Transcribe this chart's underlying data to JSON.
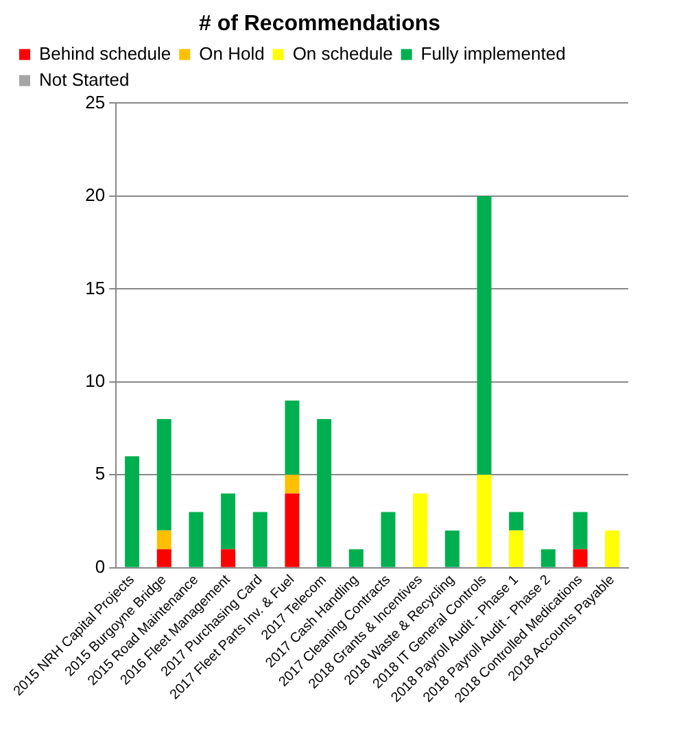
{
  "chart_data": {
    "type": "bar",
    "title": "# of Recommendations",
    "stacked": true,
    "categories": [
      "2015 NRH Capital Projects",
      "2015 Burgoyne Bridge",
      "2015 Road Maintenance",
      "2016 Fleet Management",
      "2017 Purchasing Card",
      "2017 Fleet Parts Inv. & Fuel",
      "2017 Telecom",
      "2017 Cash Handling",
      "2017 Cleaning Contracts",
      "2018 Grants & Incentives",
      "2018 Waste & Recycling",
      "2018 IT General Controls",
      "2018 Payroll Audit - Phase 1",
      "2018 Payroll Audit - Phase 2",
      "2018 Controlled Medications",
      "2018 Accounts Payable"
    ],
    "series": [
      {
        "name": "Behind schedule",
        "color": "#ff0000",
        "values": [
          0,
          1,
          0,
          1,
          0,
          4,
          0,
          0,
          0,
          0,
          0,
          0,
          0,
          0,
          1,
          0
        ]
      },
      {
        "name": "On Hold",
        "color": "#ffc000",
        "values": [
          0,
          1,
          0,
          0,
          0,
          1,
          0,
          0,
          0,
          0,
          0,
          0,
          0,
          0,
          0,
          0
        ]
      },
      {
        "name": "On schedule",
        "color": "#ffff00",
        "values": [
          0,
          0,
          0,
          0,
          0,
          0,
          0,
          0,
          0,
          4,
          0,
          5,
          2,
          0,
          0,
          2
        ]
      },
      {
        "name": "Fully implemented",
        "color": "#00b050",
        "values": [
          6,
          6,
          3,
          3,
          3,
          4,
          8,
          1,
          3,
          0,
          2,
          15,
          1,
          1,
          2,
          0
        ]
      },
      {
        "name": "Not Started",
        "color": "#a6a6a6",
        "values": [
          0,
          0,
          0,
          0,
          0,
          0,
          0,
          0,
          0,
          0,
          0,
          0,
          0,
          0,
          0,
          0
        ]
      }
    ],
    "ylim": [
      0,
      25
    ],
    "yticks": [
      0,
      5,
      10,
      15,
      20,
      25
    ],
    "grid": "y",
    "legend": "top"
  }
}
